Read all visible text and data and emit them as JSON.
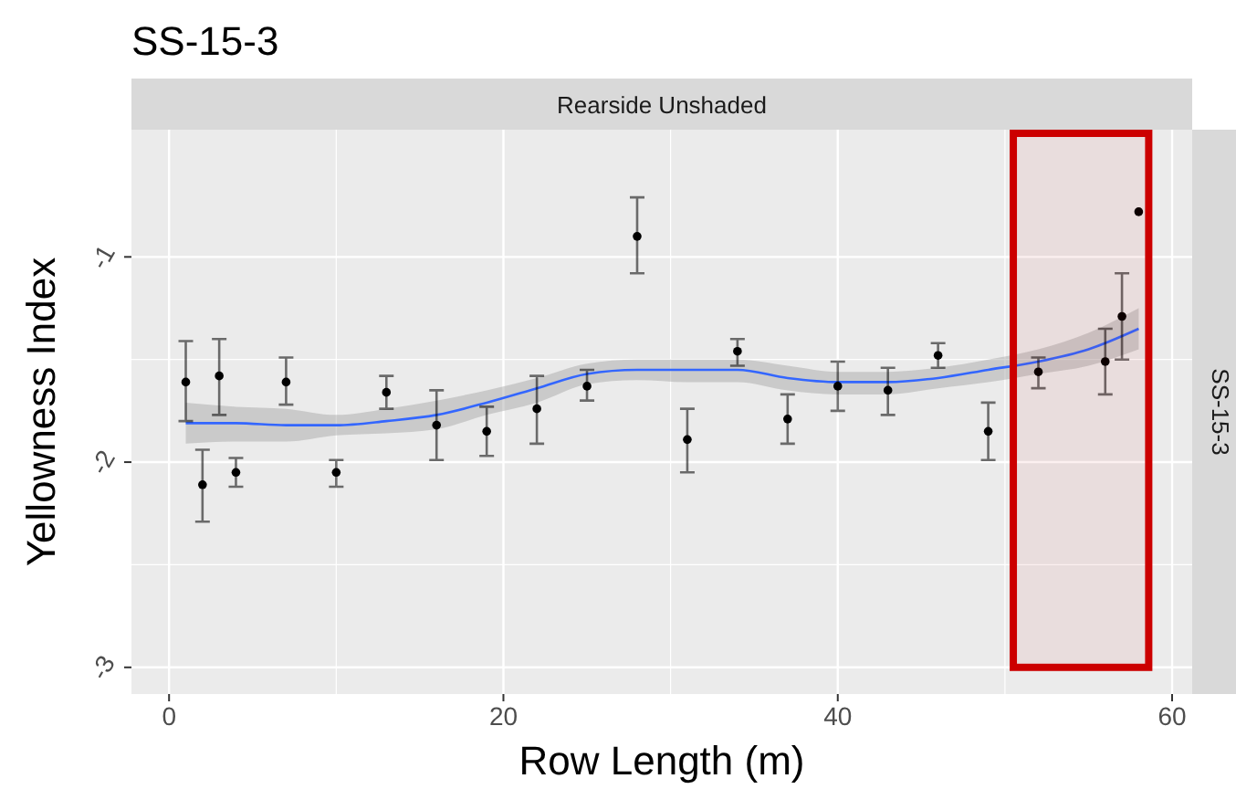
{
  "chart_data": {
    "type": "scatter",
    "title": "SS-15-3",
    "xlabel": "Row Length (m)",
    "ylabel": "Yellowness Index",
    "annotations": [
      "Rearside Unshaded",
      "SS-15-3"
    ],
    "x": [
      1,
      2,
      3,
      4,
      7,
      10,
      13,
      16,
      19,
      22,
      25,
      28,
      31,
      34,
      37,
      40,
      43,
      46,
      49,
      52,
      56,
      57,
      58
    ],
    "series": [
      {
        "color": "#000000",
        "marker": "circle",
        "values": [
          -1.61,
          -2.11,
          -1.58,
          -2.05,
          -1.61,
          -2.05,
          -1.66,
          -1.82,
          -1.85,
          -1.74,
          -1.63,
          -0.9,
          -1.89,
          -1.46,
          -1.79,
          -1.63,
          -1.65,
          -1.48,
          -1.85,
          -1.56,
          -1.51,
          -1.29,
          -0.78
        ],
        "errors": [
          [
            -1.8,
            -1.41
          ],
          [
            -2.29,
            -1.94
          ],
          [
            -1.77,
            -1.4
          ],
          [
            -2.12,
            -1.98
          ],
          [
            -1.72,
            -1.49
          ],
          [
            -2.12,
            -1.99
          ],
          [
            -1.74,
            -1.58
          ],
          [
            -1.99,
            -1.65
          ],
          [
            -1.97,
            -1.73
          ],
          [
            -1.91,
            -1.58
          ],
          [
            -1.7,
            -1.55
          ],
          [
            -1.08,
            -0.71
          ],
          [
            -2.05,
            -1.74
          ],
          [
            -1.53,
            -1.4
          ],
          [
            -1.91,
            -1.67
          ],
          [
            -1.75,
            -1.51
          ],
          [
            -1.77,
            -1.54
          ],
          [
            -1.54,
            -1.42
          ],
          [
            -1.99,
            -1.71
          ],
          [
            -1.64,
            -1.49
          ],
          [
            -1.67,
            -1.35
          ],
          [
            -1.5,
            -1.08
          ],
          null
        ]
      },
      {
        "type": "line",
        "color": "#3366ff",
        "x": [
          1,
          4,
          7,
          10,
          13,
          16,
          19,
          22,
          25,
          28,
          31,
          34,
          37,
          40,
          43,
          46,
          49,
          52,
          55,
          58
        ],
        "values": [
          -1.81,
          -1.81,
          -1.82,
          -1.82,
          -1.8,
          -1.77,
          -1.71,
          -1.64,
          -1.57,
          -1.55,
          -1.55,
          -1.55,
          -1.59,
          -1.61,
          -1.61,
          -1.59,
          -1.55,
          -1.51,
          -1.45,
          -1.35
        ],
        "lower": [
          -1.91,
          -1.9,
          -1.9,
          -1.87,
          -1.86,
          -1.84,
          -1.77,
          -1.71,
          -1.62,
          -1.6,
          -1.61,
          -1.61,
          -1.65,
          -1.67,
          -1.67,
          -1.64,
          -1.61,
          -1.57,
          -1.53,
          -1.45
        ],
        "upper": [
          -1.71,
          -1.73,
          -1.74,
          -1.77,
          -1.74,
          -1.7,
          -1.65,
          -1.59,
          -1.52,
          -1.5,
          -1.5,
          -1.5,
          -1.53,
          -1.56,
          -1.56,
          -1.54,
          -1.5,
          -1.45,
          -1.37,
          -1.25
        ]
      }
    ],
    "xlim": [
      -2.25,
      61.2
    ],
    "ylim": [
      -3.13,
      -0.38
    ],
    "xticks": [
      0,
      20,
      40,
      60
    ],
    "yticks": [
      -3,
      -2,
      -1
    ],
    "grid": true,
    "bands": [
      {
        "axis": "x",
        "from": 50.5,
        "to": 58.6,
        "color": "#cc0000"
      }
    ]
  }
}
